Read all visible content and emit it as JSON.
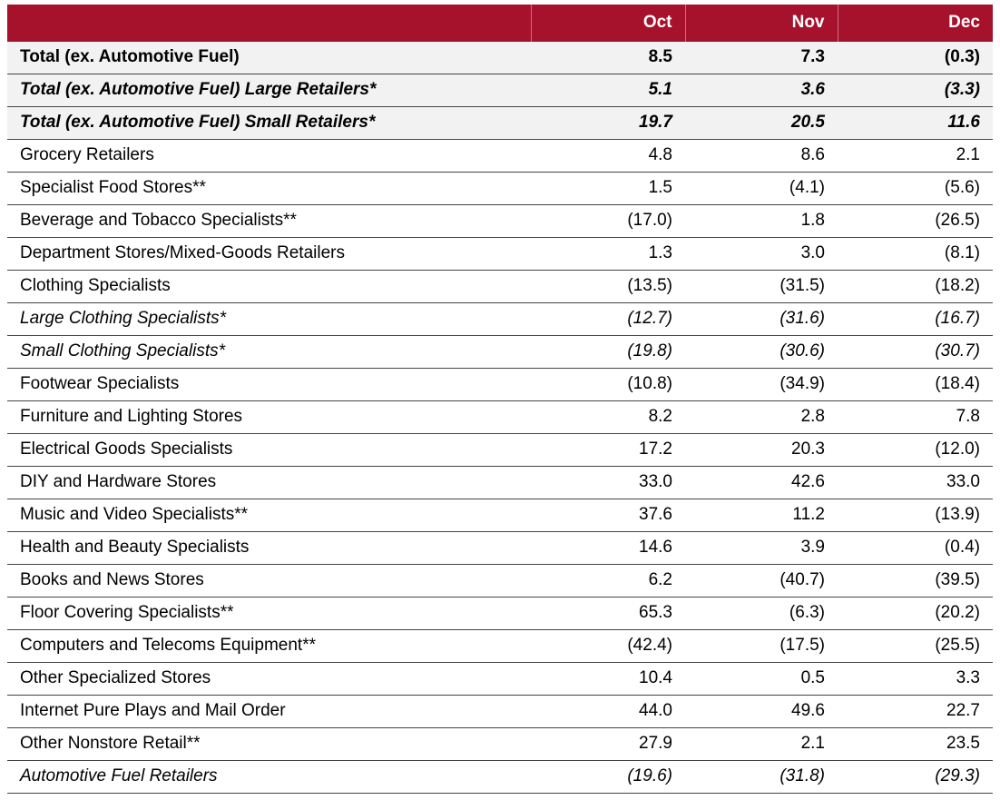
{
  "table": {
    "header": [
      "",
      "Oct",
      "Nov",
      "Dec"
    ],
    "rows": [
      [
        "Total (ex. Automotive Fuel)",
        "8.5",
        "7.3",
        "(0.3)"
      ],
      [
        "Total (ex. Automotive Fuel) Large Retailers*",
        "5.1",
        "3.6",
        "(3.3)"
      ],
      [
        "Total (ex. Automotive Fuel) Small Retailers*",
        "19.7",
        "20.5",
        "11.6"
      ],
      [
        "Grocery Retailers",
        "4.8",
        "8.6",
        "2.1"
      ],
      [
        "Specialist Food Stores**",
        "1.5",
        "(4.1)",
        "(5.6)"
      ],
      [
        "Beverage and Tobacco Specialists**",
        "(17.0)",
        "1.8",
        "(26.5)"
      ],
      [
        "Department Stores/Mixed-Goods Retailers",
        "1.3",
        "3.0",
        "(8.1)"
      ],
      [
        "Clothing Specialists",
        "(13.5)",
        "(31.5)",
        "(18.2)"
      ],
      [
        "Large Clothing Specialists*",
        "(12.7)",
        "(31.6)",
        "(16.7)"
      ],
      [
        "Small Clothing Specialists*",
        "(19.8)",
        "(30.6)",
        "(30.7)"
      ],
      [
        "Footwear Specialists",
        "(10.8)",
        "(34.9)",
        "(18.4)"
      ],
      [
        "Furniture and Lighting Stores",
        "8.2",
        "2.8",
        "7.8"
      ],
      [
        "Electrical Goods Specialists",
        "17.2",
        "20.3",
        "(12.0)"
      ],
      [
        "DIY and Hardware Stores",
        "33.0",
        "42.6",
        "33.0"
      ],
      [
        "Music and Video Specialists**",
        "37.6",
        "11.2",
        "(13.9)"
      ],
      [
        "Health and Beauty Specialists",
        "14.6",
        "3.9",
        "(0.4)"
      ],
      [
        "Books and News Stores",
        "6.2",
        "(40.7)",
        "(39.5)"
      ],
      [
        "Floor Covering Specialists**",
        "65.3",
        "(6.3)",
        "(20.2)"
      ],
      [
        "Computers and Telecoms Equipment**",
        "(42.4)",
        "(17.5)",
        "(25.5)"
      ],
      [
        "Other Specialized Stores",
        "10.4",
        "0.5",
        "3.3"
      ],
      [
        "Internet Pure Plays and Mail Order",
        "44.0",
        "49.6",
        "22.7"
      ],
      [
        "Other Nonstore Retail**",
        "27.9",
        "2.1",
        "23.5"
      ],
      [
        "Automotive Fuel Retailers",
        "(19.6)",
        "(31.8)",
        "(29.3)"
      ]
    ]
  }
}
